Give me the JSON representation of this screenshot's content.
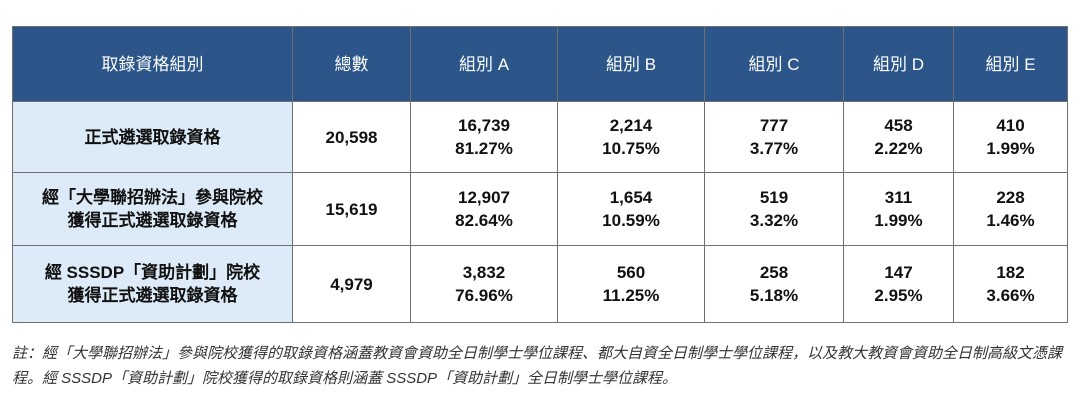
{
  "table": {
    "headers": [
      "取錄資格組別",
      "總數",
      "組別 A",
      "組別 B",
      "組別 C",
      "組別 D",
      "組別 E"
    ],
    "rows": [
      {
        "label": [
          "正式遴選取錄資格"
        ],
        "total": "20,598",
        "groups": [
          {
            "count": "16,739",
            "percent": "81.27%"
          },
          {
            "count": "2,214",
            "percent": "10.75%"
          },
          {
            "count": "777",
            "percent": "3.77%"
          },
          {
            "count": "458",
            "percent": "2.22%"
          },
          {
            "count": "410",
            "percent": "1.99%"
          }
        ]
      },
      {
        "label": [
          "經「大學聯招辦法」參與院校",
          "獲得正式遴選取錄資格"
        ],
        "total": "15,619",
        "groups": [
          {
            "count": "12,907",
            "percent": "82.64%"
          },
          {
            "count": "1,654",
            "percent": "10.59%"
          },
          {
            "count": "519",
            "percent": "3.32%"
          },
          {
            "count": "311",
            "percent": "1.99%"
          },
          {
            "count": "228",
            "percent": "1.46%"
          }
        ]
      },
      {
        "label": [
          "經 SSSDP「資助計劃」院校",
          "獲得正式遴選取錄資格"
        ],
        "total": "4,979",
        "groups": [
          {
            "count": "3,832",
            "percent": "76.96%"
          },
          {
            "count": "560",
            "percent": "11.25%"
          },
          {
            "count": "258",
            "percent": "5.18%"
          },
          {
            "count": "147",
            "percent": "2.95%"
          },
          {
            "count": "182",
            "percent": "3.66%"
          }
        ]
      }
    ]
  },
  "note": "註：經「大學聯招辦法」參與院校獲得的取錄資格涵蓋教資會資助全日制學士學位課程、都大自資全日制學士學位課程，以及教大教資會資助全日制高級文憑課程。經 SSSDP「資助計劃」院校獲得的取錄資格則涵蓋 SSSDP「資助計劃」全日制學士學位課程。"
}
